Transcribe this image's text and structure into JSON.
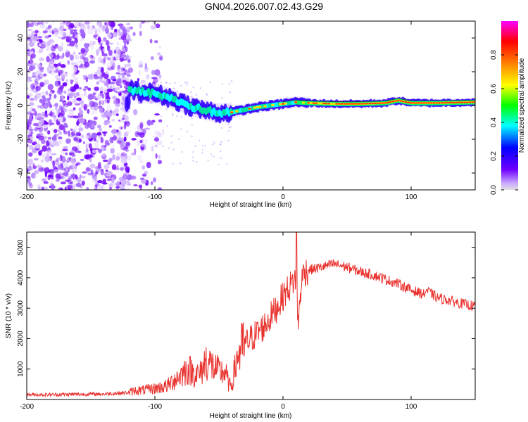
{
  "figure": {
    "title": "GN04.2026.007.02.43.G29"
  },
  "chart_data": [
    {
      "type": "heatmap",
      "name": "spectrogram",
      "xlabel": "Height of straight line (km)",
      "ylabel": "Frequency (Hz)",
      "xlim": [
        -200,
        150
      ],
      "ylim": [
        -50,
        50
      ],
      "xticks": [
        -200,
        -100,
        0,
        100
      ],
      "yticks": [
        -40,
        -20,
        0,
        20,
        40
      ],
      "colorbar": {
        "label": "Normalized spectral amplitude",
        "range": [
          0,
          1
        ],
        "ticks": [
          0.0,
          0.2,
          0.4,
          0.6,
          0.8
        ],
        "tick_labels": [
          "0.0",
          "0.2",
          "0.4",
          "0.6",
          "0.8"
        ],
        "colormap": [
          "#e0e0e0",
          "#6f00ff",
          "#0000ff",
          "#00ffff",
          "#00ff00",
          "#ffff00",
          "#ff8000",
          "#ff0000",
          "#ff00ff"
        ]
      },
      "ridge": {
        "x": [
          -120,
          -110,
          -100,
          -90,
          -80,
          -70,
          -60,
          -50,
          -40,
          -30,
          -20,
          -10,
          0,
          10,
          20,
          40,
          60,
          80,
          90,
          100,
          110,
          120,
          150
        ],
        "y": [
          9,
          8,
          7,
          5,
          2,
          -1,
          -3,
          -4.5,
          -4,
          -2.5,
          -1,
          0,
          1,
          2,
          1.5,
          1,
          1,
          1.5,
          3,
          1.5,
          1.5,
          1.5,
          2
        ]
      }
    },
    {
      "type": "line",
      "name": "snr",
      "xlabel": "Height of straight line (km)",
      "ylabel": "SNR (10 * v/v)",
      "xlim": [
        -200,
        150
      ],
      "ylim": [
        0,
        5500
      ],
      "xticks": [
        -200,
        -100,
        0,
        100
      ],
      "yticks": [
        1000,
        2000,
        3000,
        4000,
        5000
      ],
      "color": "#e8302c",
      "series": [
        {
          "name": "SNR",
          "x": [
            -200,
            -180,
            -160,
            -140,
            -120,
            -115,
            -110,
            -100,
            -90,
            -85,
            -80,
            -75,
            -70,
            -65,
            -60,
            -55,
            -50,
            -45,
            -42,
            -40,
            -35,
            -30,
            -25,
            -20,
            -15,
            -10,
            -5,
            0,
            5,
            10,
            12,
            14,
            16,
            20,
            25,
            30,
            40,
            50,
            60,
            70,
            80,
            90,
            100,
            110,
            112,
            115,
            120,
            130,
            140,
            150
          ],
          "y": [
            160,
            160,
            170,
            180,
            230,
            300,
            300,
            360,
            450,
            650,
            800,
            1000,
            900,
            800,
            1300,
            1100,
            900,
            900,
            450,
            500,
            1500,
            1800,
            2000,
            2200,
            2400,
            2700,
            3000,
            3400,
            3700,
            4000,
            2500,
            3700,
            4200,
            4250,
            4300,
            4350,
            4450,
            4350,
            4200,
            4100,
            3950,
            3800,
            3600,
            3450,
            3600,
            3500,
            3350,
            3250,
            3150,
            3050
          ]
        }
      ]
    }
  ]
}
